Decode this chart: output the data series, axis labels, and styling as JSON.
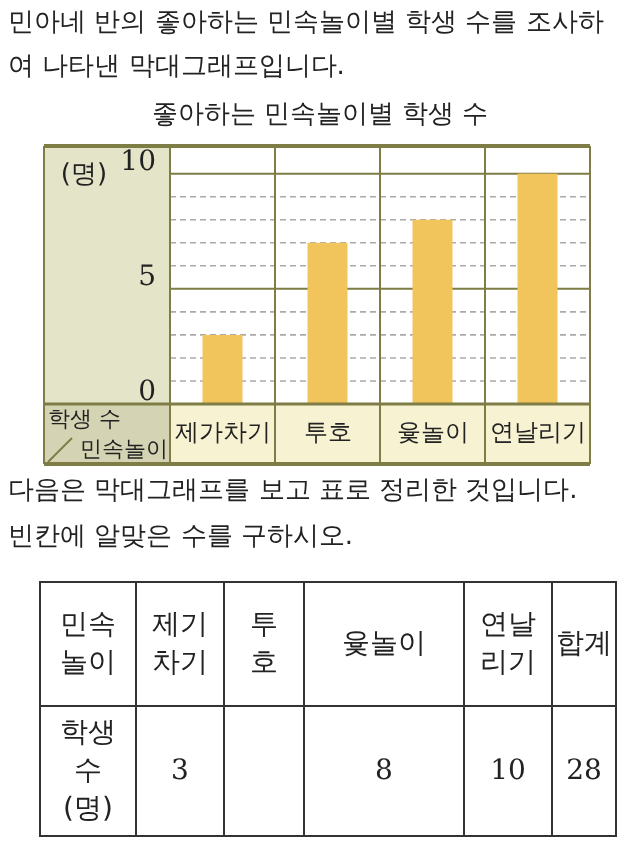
{
  "chart_data": {
    "type": "bar",
    "title": "좋아하는 민속놀이별 학생 수",
    "categories": [
      "제가차기",
      "투호",
      "윷놀이",
      "연날리기"
    ],
    "values": [
      3,
      7,
      8,
      10
    ],
    "color": "#f2c45c",
    "ylabel": "(명)",
    "xlabel": "민속놀이",
    "ylim": [
      0,
      11.2
    ],
    "yticks": [
      0,
      {
        "value": 1,
        "label": null
      },
      {
        "value": 2,
        "label": null
      },
      {
        "value": 3,
        "label": null
      },
      {
        "value": 4,
        "label": null
      },
      5,
      {
        "value": 6,
        "label": null
      },
      {
        "value": 7,
        "label": null
      },
      {
        "value": 8,
        "label": null
      },
      {
        "value": 9,
        "label": null
      },
      10
    ],
    "grid": "y",
    "annotations": [
      "민아네 반의 좋아하는 민속놀이별 학생 수를 조사하",
      "여 나타낸 막대그래프입니다.",
      "학생 수",
      "다음은 막대그래프를 보고  표로 정리한 것입니다.",
      "빈칸에 알맞은 수를 구하시오.",
      "민속\n놀이",
      "제기\n차기",
      "투\n호",
      "윷놀이",
      "연날\n리기",
      "합계",
      "학생\n수\n(명)",
      "3",
      null,
      "8",
      "10",
      "28"
    ]
  }
}
